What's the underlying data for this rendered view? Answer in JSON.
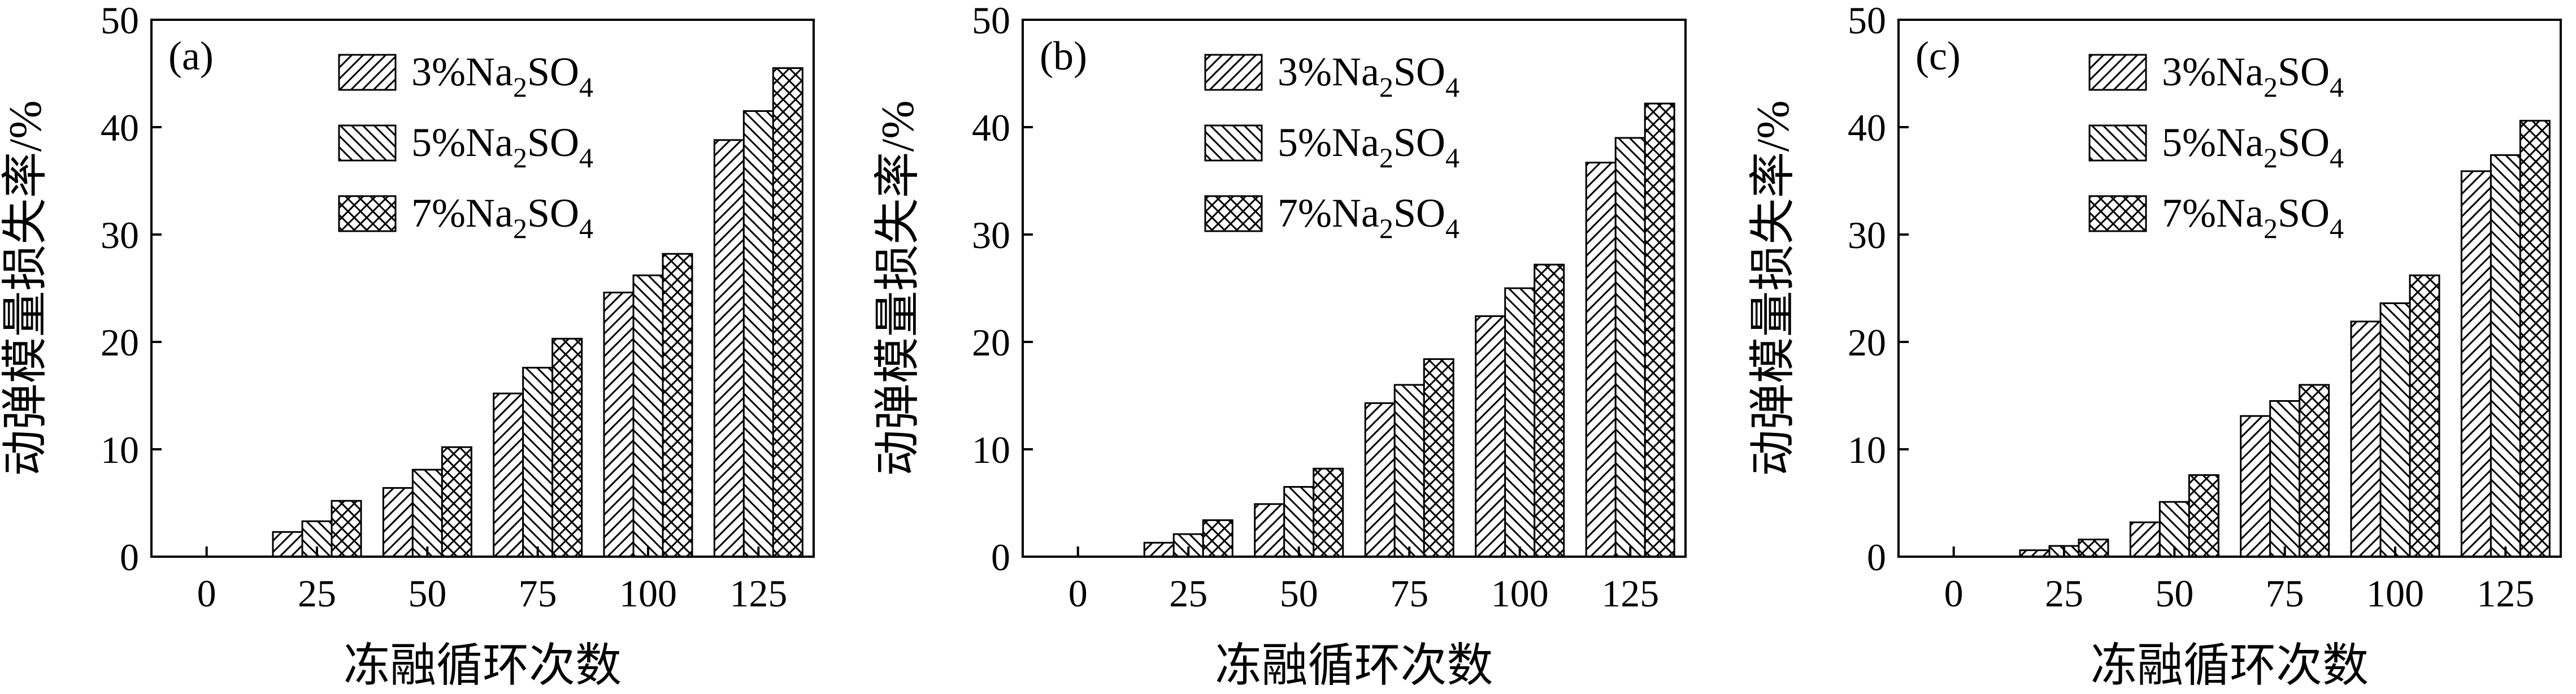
{
  "chart_data": [
    {
      "panel": "(a)",
      "type": "bar",
      "categories": [
        "0",
        "25",
        "50",
        "75",
        "100",
        "125"
      ],
      "series": [
        {
          "name": "3%Na2SO4",
          "values": [
            0,
            2.3,
            6.4,
            15.2,
            24.6,
            38.8
          ]
        },
        {
          "name": "5%Na2SO4",
          "values": [
            0,
            3.3,
            8.1,
            17.6,
            26.2,
            41.5
          ]
        },
        {
          "name": "7%Na2SO4",
          "values": [
            0,
            5.2,
            10.2,
            20.3,
            28.2,
            45.5
          ]
        }
      ],
      "xlabel": "冻融循环次数",
      "ylabel": "动弹模量损失率/%",
      "ylim": [
        0,
        50
      ],
      "yticks": [
        "0",
        "10",
        "20",
        "30",
        "40",
        "50"
      ],
      "legend_position": "top-right",
      "grid": false
    },
    {
      "panel": "(b)",
      "type": "bar",
      "categories": [
        "0",
        "25",
        "50",
        "75",
        "100",
        "125"
      ],
      "series": [
        {
          "name": "3%Na2SO4",
          "values": [
            0,
            1.3,
            4.9,
            14.3,
            22.4,
            36.7
          ]
        },
        {
          "name": "5%Na2SO4",
          "values": [
            0,
            2.1,
            6.5,
            16.0,
            25.0,
            39.0
          ]
        },
        {
          "name": "7%Na2SO4",
          "values": [
            0,
            3.4,
            8.2,
            18.4,
            27.2,
            42.2
          ]
        }
      ],
      "xlabel": "冻融循环次数",
      "ylabel": "动弹模量损失率/%",
      "ylim": [
        0,
        50
      ],
      "yticks": [
        "0",
        "10",
        "20",
        "30",
        "40",
        "50"
      ],
      "legend_position": "top-right",
      "grid": false
    },
    {
      "panel": "(c)",
      "type": "bar",
      "categories": [
        "0",
        "25",
        "50",
        "75",
        "100",
        "125"
      ],
      "series": [
        {
          "name": "3%Na2SO4",
          "values": [
            0,
            0.6,
            3.2,
            13.1,
            21.9,
            35.9
          ]
        },
        {
          "name": "5%Na2SO4",
          "values": [
            0,
            1.0,
            5.1,
            14.5,
            23.6,
            37.4
          ]
        },
        {
          "name": "7%Na2SO4",
          "values": [
            0,
            1.6,
            7.6,
            16.0,
            26.2,
            40.6
          ]
        }
      ],
      "xlabel": "冻融循环次数",
      "ylabel": "动弹模量损失率/%",
      "ylim": [
        0,
        50
      ],
      "yticks": [
        "0",
        "10",
        "20",
        "30",
        "40",
        "50"
      ],
      "legend_position": "top-right",
      "grid": false
    }
  ],
  "legend_text": {
    "prefix": "%Na",
    "mid": "SO",
    "sub2": "2",
    "sub4": "4"
  },
  "patterns": [
    "hatch-forward",
    "hatch-back",
    "hatch-cross"
  ]
}
